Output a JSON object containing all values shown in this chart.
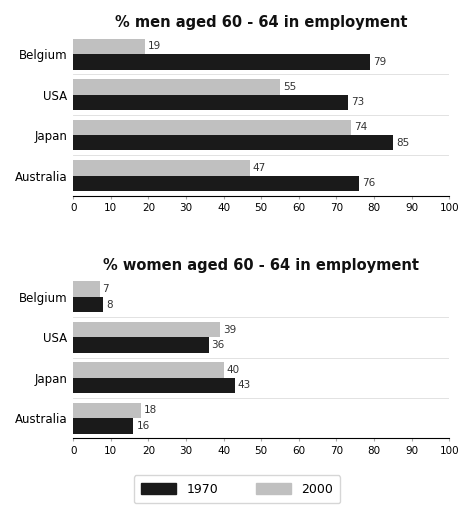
{
  "men_title": "% men aged 60 - 64 in employment",
  "women_title": "% women aged 60 - 64 in employment",
  "countries": [
    "Belgium",
    "USA",
    "Japan",
    "Australia"
  ],
  "men_1970": [
    79,
    73,
    85,
    76
  ],
  "men_2000": [
    19,
    55,
    74,
    47
  ],
  "women_1970": [
    8,
    36,
    43,
    16
  ],
  "women_2000": [
    7,
    39,
    40,
    18
  ],
  "color_1970": "#1a1a1a",
  "color_2000": "#c0c0c0",
  "xlim": [
    0,
    100
  ],
  "xticks": [
    0,
    10,
    20,
    30,
    40,
    50,
    60,
    70,
    80,
    90,
    100
  ],
  "bar_height": 0.38,
  "label_1970": "1970",
  "label_2000": "2000",
  "bg_color": "#ffffff",
  "title_fontsize": 10.5,
  "tick_fontsize": 7.5,
  "label_fontsize": 8.5,
  "annot_fontsize": 7.5
}
